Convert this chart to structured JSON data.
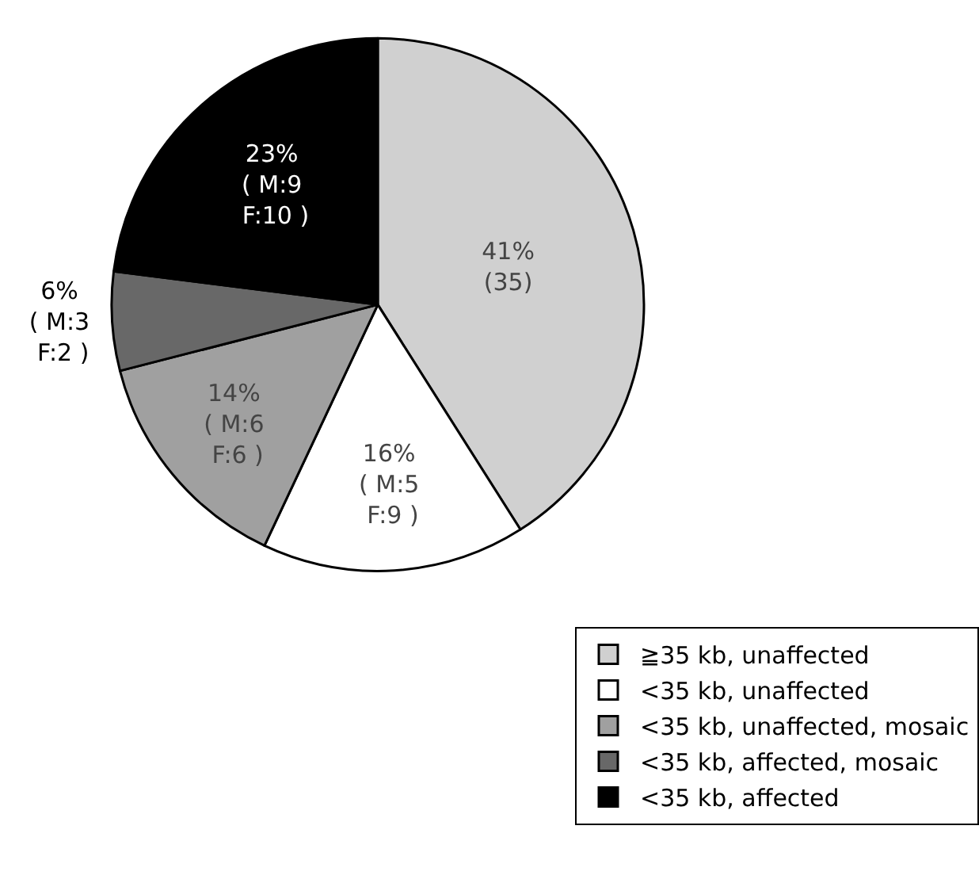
{
  "chart_data": {
    "type": "pie",
    "categories": [
      "≧35 kb, unaffected",
      "<35 kb, unaffected",
      "<35 kb, unaffected, mosaic",
      "<35 kb, affected, mosaic",
      "<35 kb, affected"
    ],
    "values": [
      41,
      16,
      14,
      6,
      23
    ],
    "colors": [
      "#d0d0d0",
      "#ffffff",
      "#a0a0a0",
      "#686868",
      "#000000"
    ],
    "value_labels": [
      "41%\n(35)",
      "16%\n( M:5\n F:9 )",
      "14%\n( M:6\n F:6 )",
      "6%\n( M:3\n F:2 )",
      "23%\n( M:9\n F:10 )"
    ],
    "legend": "bottom right"
  }
}
